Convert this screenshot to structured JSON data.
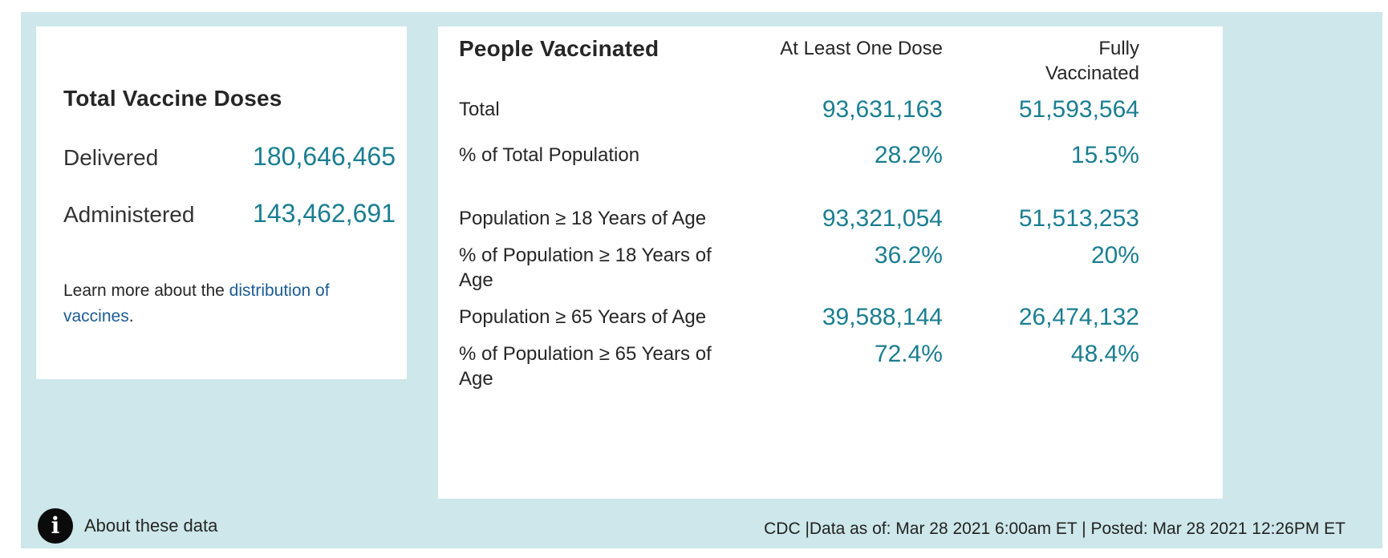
{
  "colors": {
    "background_teal": "#cde7ea",
    "card_white": "#ffffff",
    "value_teal": "#1a7e91",
    "link_blue": "#1d5c94",
    "text_dark": "#262626",
    "info_icon_black": "#0b0b0b"
  },
  "doses_card": {
    "title": "Total Vaccine Doses",
    "rows": [
      {
        "label": "Delivered",
        "value": "180,646,465"
      },
      {
        "label": "Administered",
        "value": "143,462,691"
      }
    ],
    "learn_more": {
      "prefix": "Learn more about the ",
      "link": "distribution of vaccines",
      "suffix": "."
    }
  },
  "people_card": {
    "title": "People Vaccinated",
    "columns": {
      "one_dose": "At Least One Dose",
      "fully": "Fully Vaccinated"
    },
    "rows": [
      {
        "label": "Total",
        "one_dose": "93,631,163",
        "fully": "51,593,564"
      },
      {
        "label": "% of Total Population",
        "one_dose": "28.2%",
        "fully": "15.5%"
      },
      {
        "label": "Population ≥ 18 Years of Age",
        "one_dose": "93,321,054",
        "fully": "51,513,253"
      },
      {
        "label": "% of Population ≥ 18 Years of Age",
        "one_dose": "36.2%",
        "fully": "20%"
      },
      {
        "label": "Population ≥ 65 Years of Age",
        "one_dose": "39,588,144",
        "fully": "26,474,132"
      },
      {
        "label": "% of Population ≥ 65 Years of Age",
        "one_dose": "72.4%",
        "fully": "48.4%"
      }
    ]
  },
  "footer": {
    "info_icon_glyph": "i",
    "about_label": "About these data",
    "source_text": "CDC |Data as of: Mar 28 2021 6:00am ET | Posted: Mar 28 2021 12:26PM ET"
  }
}
